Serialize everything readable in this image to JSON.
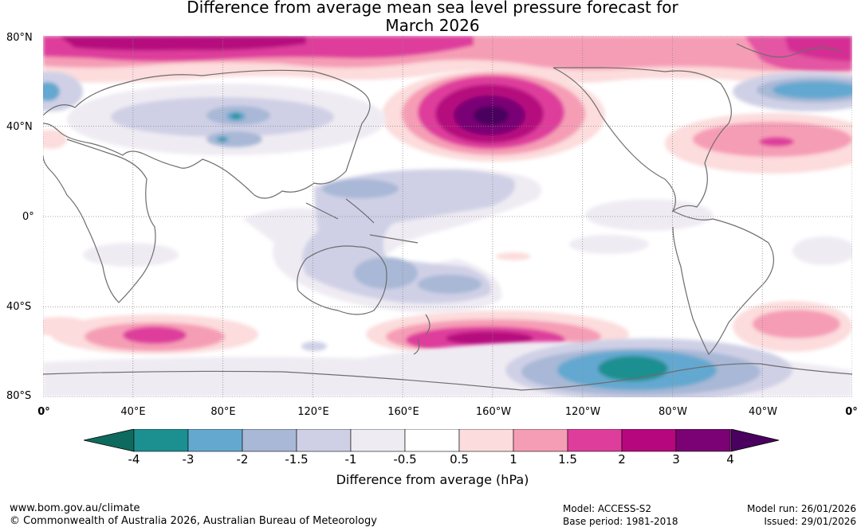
{
  "title": {
    "line1": "Difference from average mean sea level pressure forecast for",
    "line2": "March 2026"
  },
  "axes": {
    "lat_labels": [
      "80°N",
      "40°N",
      "0°",
      "40°S",
      "80°S"
    ],
    "lon_labels": [
      "0°",
      "40°E",
      "80°E",
      "120°E",
      "160°E",
      "160°W",
      "120°W",
      "80°W",
      "40°W",
      "0°"
    ]
  },
  "colorbar": {
    "tick_labels": [
      "-4",
      "-3",
      "-2",
      "-1.5",
      "-1",
      "-0.5",
      "0.5",
      "1",
      "1.5",
      "2",
      "3",
      "4"
    ],
    "colors": [
      "#1c8f91",
      "#64a8d0",
      "#a8b8d6",
      "#cfd0e6",
      "#efebf3",
      "#ffffff",
      "#fcdcdc",
      "#f69db6",
      "#de3d9c",
      "#b6077e",
      "#7a0274"
    ],
    "under_color": "#0e6a5e",
    "over_color": "#4a005e",
    "label": "Difference from average (hPa)"
  },
  "footer": {
    "website": "www.bom.gov.au/climate",
    "copyright": "© Commonwealth of Australia 2026, Australian Bureau of Meteorology",
    "model": "Model: ACCESS-S2",
    "base_period": "Base period: 1981-2018",
    "model_run": "Model run: 26/01/2026",
    "issued": "Issued: 29/01/2026"
  }
}
